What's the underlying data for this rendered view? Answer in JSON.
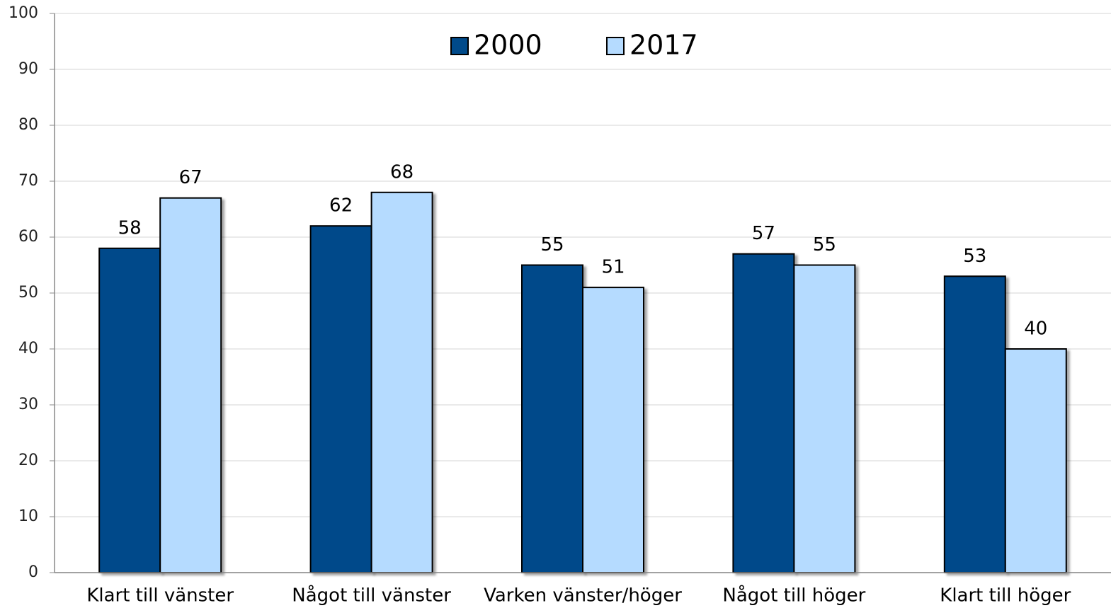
{
  "chart_data": {
    "type": "bar",
    "categories": [
      "Klart till vänster",
      "Något till vänster",
      "Varken vänster/höger",
      "Något till höger",
      "Klart till höger"
    ],
    "series": [
      {
        "name": "2000",
        "color": "#004a8a",
        "values": [
          58,
          62,
          55,
          57,
          53
        ]
      },
      {
        "name": "2017",
        "color": "#b5dbff",
        "values": [
          67,
          68,
          51,
          55,
          40
        ]
      }
    ],
    "ylim": [
      0,
      100
    ],
    "yticks": [
      0,
      10,
      20,
      30,
      40,
      50,
      60,
      70,
      80,
      90,
      100
    ],
    "grid": true,
    "legend": "top"
  }
}
